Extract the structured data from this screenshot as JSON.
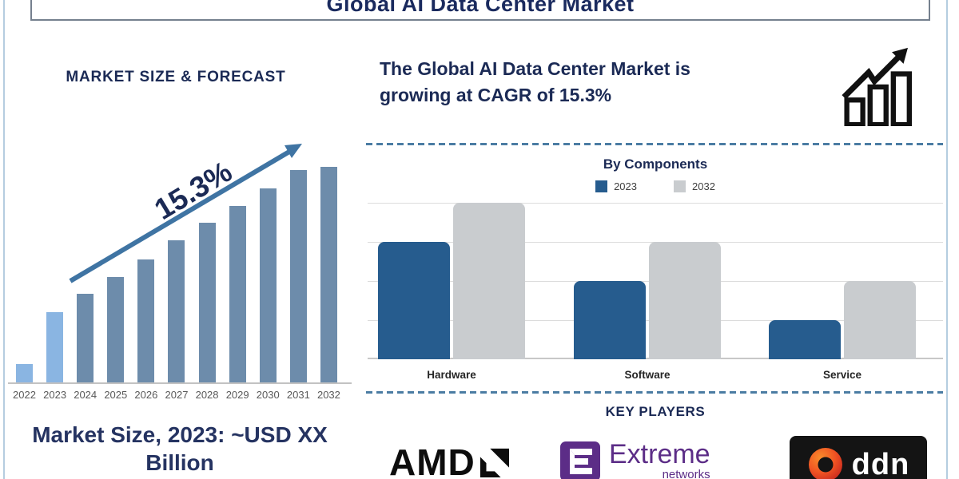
{
  "header": {
    "title": "Global AI Data Center Market"
  },
  "left_panel": {
    "heading": "MARKET SIZE & FORECAST",
    "growth_annotation": "15.3%",
    "caption": "Market Size, 2023: ~USD XX Billion"
  },
  "right_panel": {
    "headline_line1": "The Global AI Data Center Market is",
    "headline_line2": "growing at CAGR of 15.3%",
    "components_title": "By Components",
    "key_players_title": "KEY PLAYERS"
  },
  "logos": {
    "amd": "AMD",
    "extreme_line1": "Extreme",
    "extreme_line2": "networks",
    "ddn": "ddn"
  },
  "colors": {
    "navy_text": "#1b2a55",
    "left_bar_default": "#6d8cab",
    "left_bar_highlight": "#8ab5e2",
    "arrow": "#3f74a3",
    "right_bar_2023": "#265c8e",
    "right_bar_2032": "#c9cccf",
    "dashed_separator": "#4b7ca3",
    "extreme_purple": "#5c2d87",
    "ddn_orange": "#f05323"
  },
  "chart_data": [
    {
      "type": "bar",
      "title": "MARKET SIZE & FORECAST",
      "categories": [
        "2022",
        "2023",
        "2024",
        "2025",
        "2026",
        "2027",
        "2028",
        "2029",
        "2030",
        "2031",
        "2032"
      ],
      "values": [
        0.85,
        3.25,
        4.1,
        4.9,
        5.7,
        6.6,
        7.4,
        8.2,
        9.0,
        9.85,
        10.0
      ],
      "ylim": [
        0,
        10
      ],
      "unit": "relative height (axis unlabeled)",
      "annotation": "15.3% growth arrow across bars",
      "bar_color": "#6d8cab",
      "highlight_color": "#8ab5e2",
      "highlight_indices": [
        0,
        1
      ],
      "grid": false
    },
    {
      "type": "bar",
      "subtype": "grouped",
      "title": "By Components",
      "categories": [
        "Hardware",
        "Software",
        "Service"
      ],
      "series": [
        {
          "name": "2023",
          "color": "#265c8e",
          "values": [
            3,
            2,
            1
          ]
        },
        {
          "name": "2032",
          "color": "#c9cccf",
          "values": [
            4,
            3,
            2
          ]
        }
      ],
      "ylim": [
        0,
        4
      ],
      "unit": "relative gridline units (axis unlabeled)",
      "grid": true,
      "legend_position": "top"
    }
  ]
}
